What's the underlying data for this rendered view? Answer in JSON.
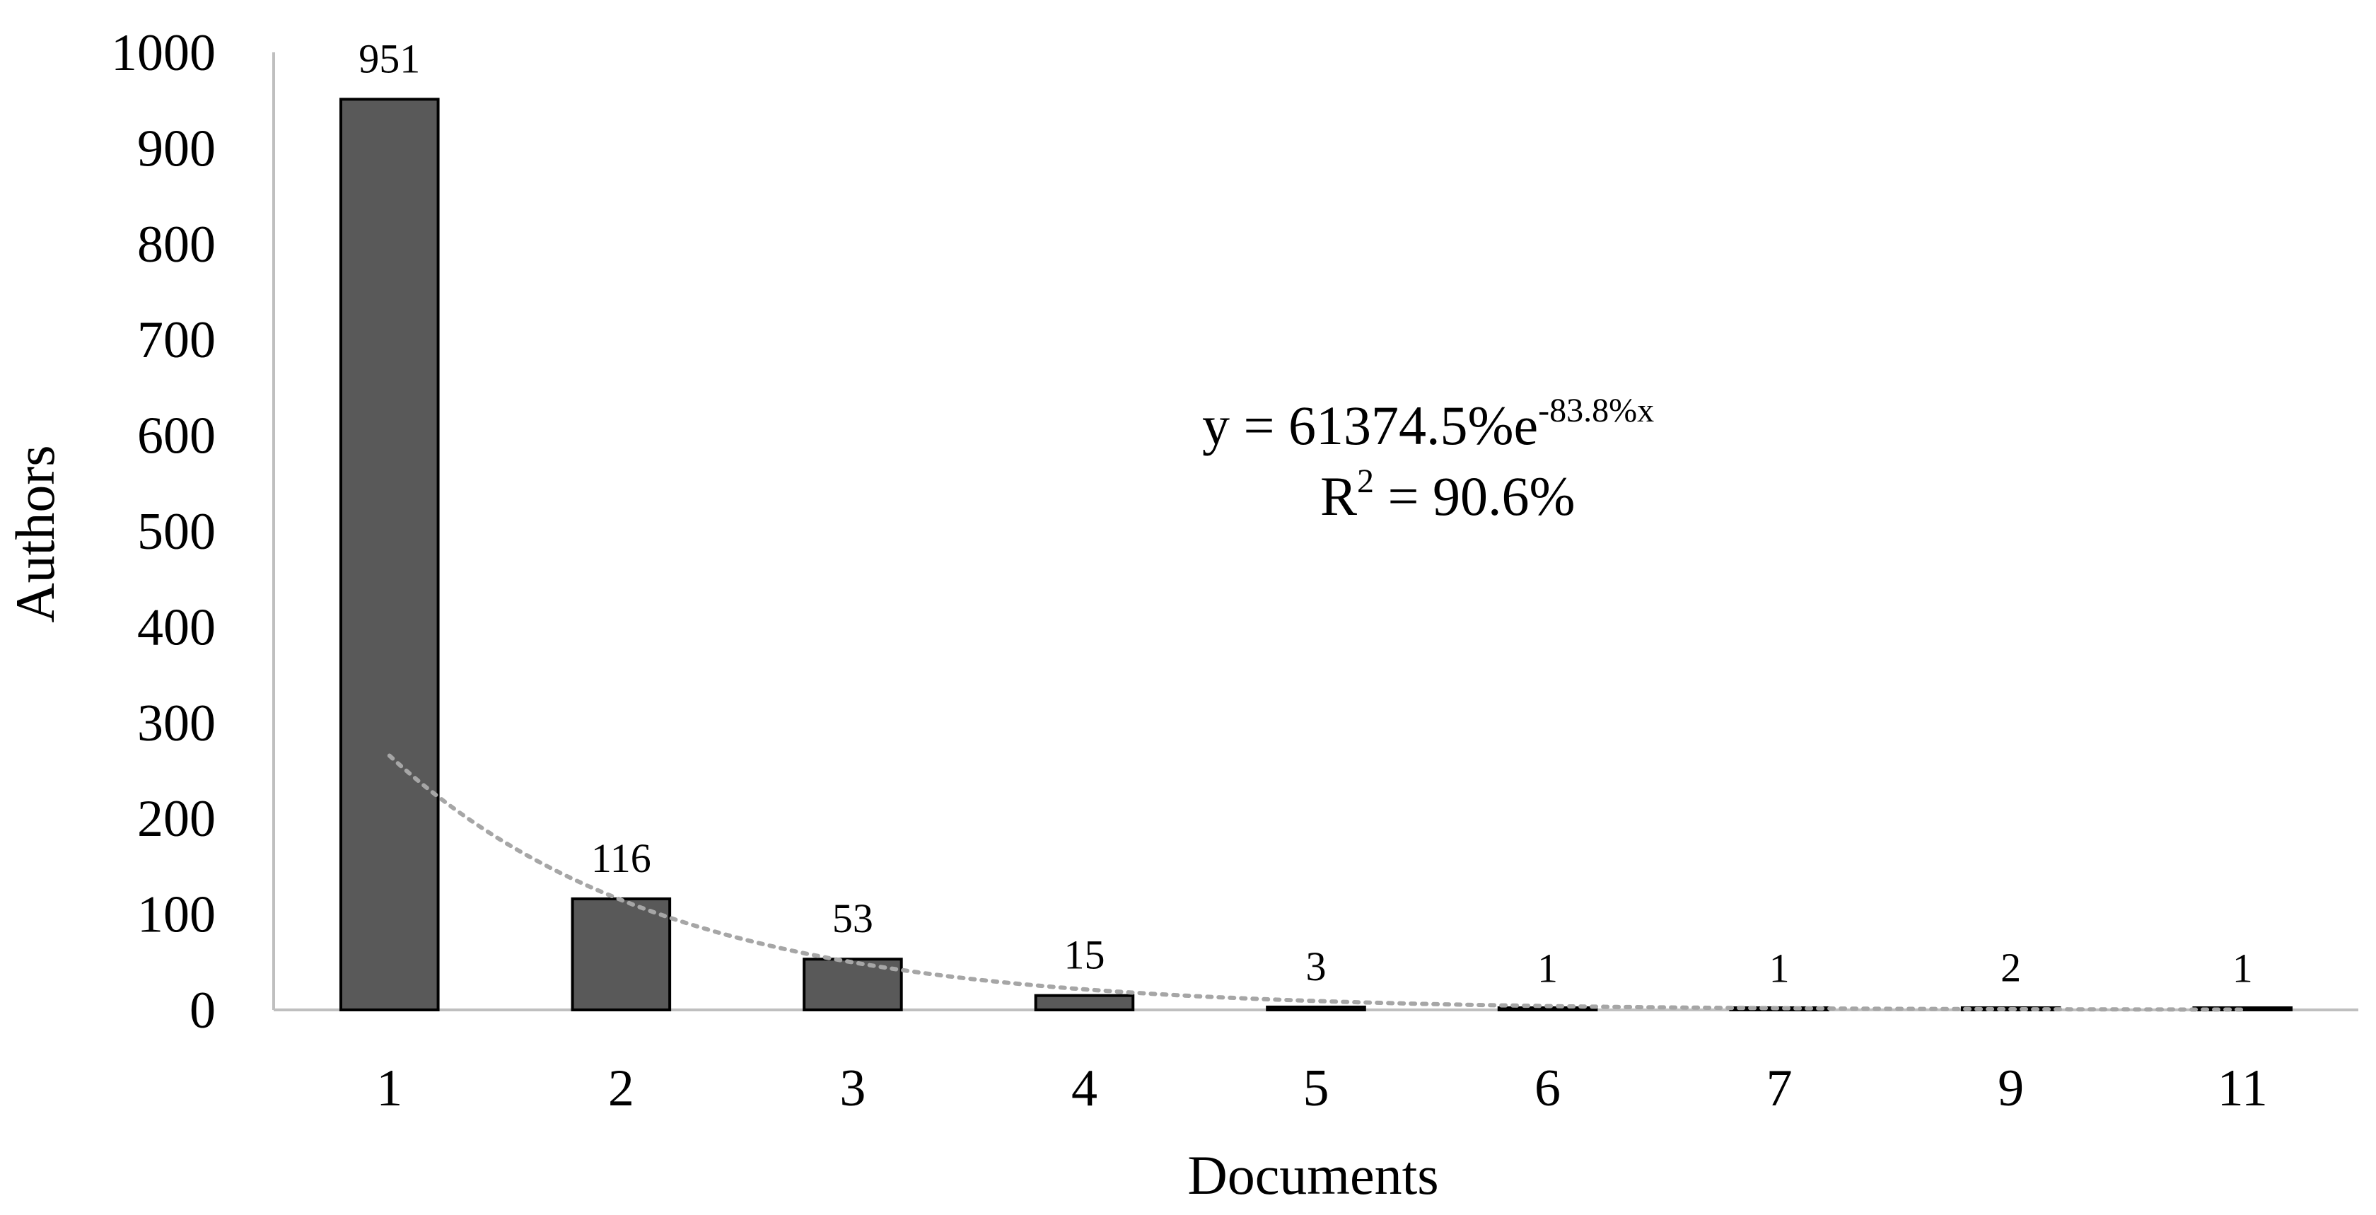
{
  "chart_data": {
    "type": "bar",
    "title": "",
    "xlabel": "Documents",
    "ylabel": "Authors",
    "categories": [
      "1",
      "2",
      "3",
      "4",
      "5",
      "6",
      "7",
      "9",
      "11"
    ],
    "series": [
      {
        "values": [
          951,
          116,
          53,
          15,
          3,
          1,
          1,
          2,
          1
        ],
        "data_labels": [
          "951",
          "116",
          "53",
          "15",
          "3",
          "1",
          "1",
          "2",
          "1"
        ]
      }
    ],
    "ylim": [
      0,
      1000
    ],
    "yticks": [
      0,
      100,
      200,
      300,
      400,
      500,
      600,
      700,
      800,
      900,
      1000
    ],
    "ytick_labels": [
      "0",
      "100",
      "200",
      "300",
      "400",
      "500",
      "600",
      "700",
      "800",
      "900",
      "1000"
    ],
    "grid": false,
    "legend": "none",
    "trendline": {
      "type": "exponential",
      "style": "dotted",
      "equation_main": "y = 61374.5%e",
      "equation_exponent": "-83.8%x",
      "r2_base": "R",
      "r2_sup": "2",
      "r2_value": " = 90.6%",
      "coefficient": 613.745,
      "rate": 0.838
    },
    "colors": {
      "bar_fill": "#595959",
      "bar_stroke": "#000000",
      "axis": "#bfbfbf",
      "trendline": "#a6a6a6"
    }
  }
}
